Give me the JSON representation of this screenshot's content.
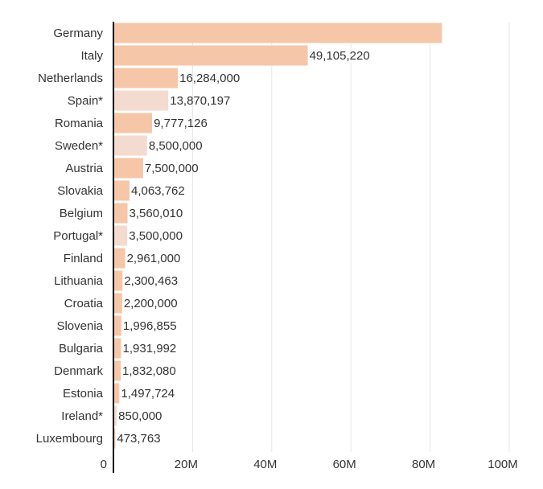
{
  "chart_data": {
    "type": "bar",
    "orientation": "horizontal",
    "categories": [
      "Germany",
      "Italy",
      "Netherlands",
      "Spain*",
      "Romania",
      "Sweden*",
      "Austria",
      "Slovakia",
      "Belgium",
      "Portugal*",
      "Finland",
      "Lithuania",
      "Croatia",
      "Slovenia",
      "Bulgaria",
      "Denmark",
      "Estonia",
      "Ireland*",
      "Luxembourg"
    ],
    "values": [
      83000000,
      49105220,
      16284000,
      13870197,
      9777126,
      8500000,
      7500000,
      4063762,
      3560010,
      3500000,
      2961000,
      2300463,
      2200000,
      1996855,
      1931992,
      1832080,
      1497724,
      850000,
      473763
    ],
    "value_labels": [
      null,
      "49,105,220",
      "16,284,000",
      "13,870,197",
      "9,777,126",
      "8,500,000",
      "7,500,000",
      "4,063,762",
      "3,560,010",
      "3,500,000",
      "2,961,000",
      "2,300,463",
      "2,200,000",
      "1,996,855",
      "1,931,992",
      "1,832,080",
      "1,497,724",
      "850,000",
      "473,763"
    ],
    "colors": [
      "#f6c6a8",
      "#f6c6a8",
      "#f6c6a8",
      "#f3dbcf",
      "#f6c6a8",
      "#f3dbcf",
      "#f6c6a8",
      "#f6c6a8",
      "#f6c6a8",
      "#f3dbcf",
      "#f6c6a8",
      "#f6c6a8",
      "#f6c6a8",
      "#f6c6a8",
      "#f6c6a8",
      "#f6c6a8",
      "#f6c6a8",
      "#f3dbcf",
      "#f6c6a8"
    ],
    "xlim": [
      0,
      100000000
    ],
    "xticks": [
      0,
      {
        "value": 20000000,
        "label": "20M"
      },
      {
        "value": 40000000,
        "label": "40M"
      },
      {
        "value": 60000000,
        "label": "60M"
      },
      {
        "value": 80000000,
        "label": "80M"
      },
      {
        "value": 100000000,
        "label": "100M"
      }
    ],
    "grid": true
  }
}
